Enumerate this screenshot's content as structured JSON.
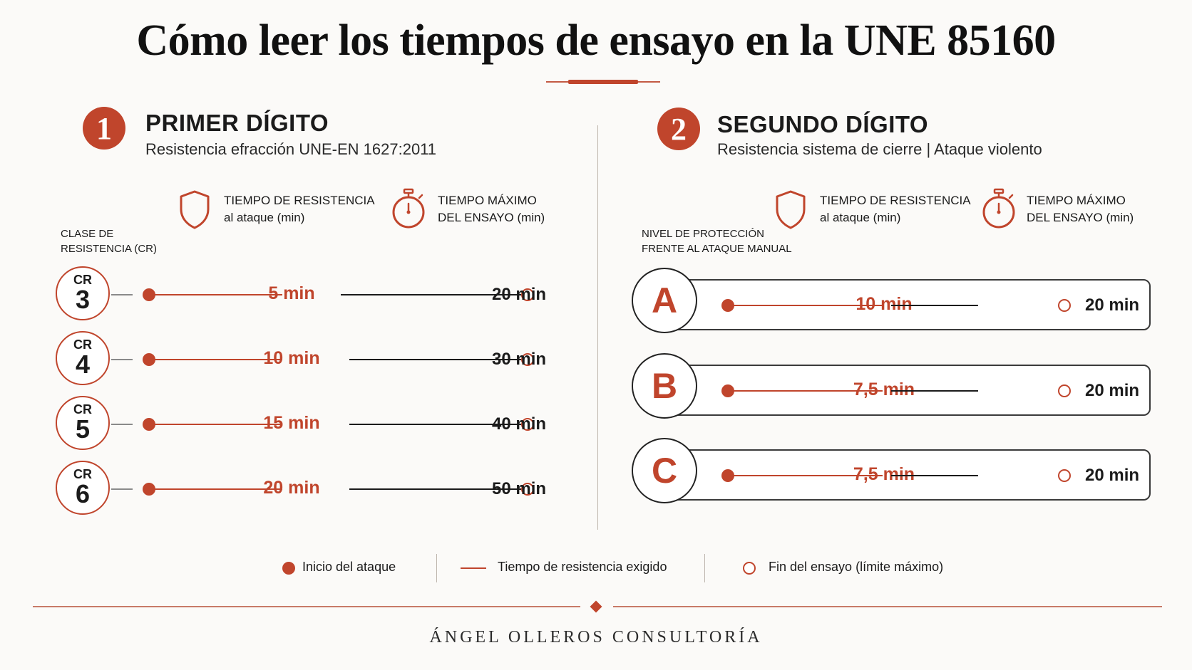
{
  "title": "Cómo leer los tiempos de ensayo en la UNE 85160",
  "colors": {
    "accent": "#c0452c",
    "text": "#1b1b1b",
    "background": "#fbfaf8"
  },
  "left": {
    "badge": "1",
    "heading": "PRIMER DÍGITO",
    "subheading": "Resistencia efracción UNE-EN 1627:2011",
    "col_resist_title": "TIEMPO DE RESISTENCIA",
    "col_resist_sub": "al ataque (min)",
    "col_max_title": "TIEMPO MÁXIMO",
    "col_max_sub_a": "DEL ENSAYO",
    "col_max_sub_b": "(min)",
    "row_head_1": "CLASE DE",
    "row_head_2": "RESISTENCIA (CR)",
    "rows": [
      {
        "label": "CR",
        "num": "3",
        "resist": "5 min",
        "max": "20 min",
        "resist_min": 5,
        "max_min": 20
      },
      {
        "label": "CR",
        "num": "4",
        "resist": "10 min",
        "max": "30 min",
        "resist_min": 10,
        "max_min": 30
      },
      {
        "label": "CR",
        "num": "5",
        "resist": "15 min",
        "max": "40 min",
        "resist_min": 15,
        "max_min": 40
      },
      {
        "label": "CR",
        "num": "6",
        "resist": "20 min",
        "max": "50 min",
        "resist_min": 20,
        "max_min": 50
      }
    ]
  },
  "right": {
    "badge": "2",
    "heading": "SEGUNDO DÍGITO",
    "subheading": "Resistencia sistema de cierre | Ataque violento",
    "col_resist_title": "TIEMPO DE RESISTENCIA",
    "col_resist_sub": "al ataque (min)",
    "col_max_title": "TIEMPO MÁXIMO",
    "col_max_sub_a": "DEL ENSAYO",
    "col_max_sub_b": "(min)",
    "row_head_1": "NIVEL DE PROTECCIÓN",
    "row_head_2": "FRENTE AL ATAQUE MANUAL",
    "rows": [
      {
        "letter": "A",
        "resist": "10 min",
        "max": "20 min",
        "resist_min": 10,
        "max_min": 20
      },
      {
        "letter": "B",
        "resist": "7,5 min",
        "max": "20 min",
        "resist_min": 7.5,
        "max_min": 20
      },
      {
        "letter": "C",
        "resist": "7,5 min",
        "max": "20 min",
        "resist_min": 7.5,
        "max_min": 20
      }
    ]
  },
  "legend": {
    "start": "Inicio del ataque",
    "resist": "Tiempo de resistencia exigido",
    "end": "Fin del ensayo (límite máximo)"
  },
  "footer": "ÁNGEL OLLEROS CONSULTORÍA",
  "icons": [
    "shield-icon",
    "stopwatch-icon"
  ]
}
